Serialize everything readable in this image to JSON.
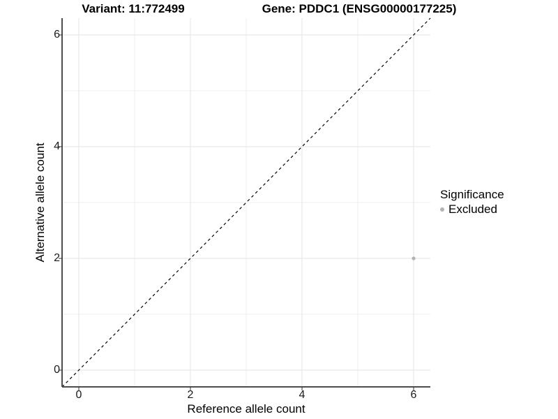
{
  "chart_data": {
    "type": "scatter",
    "titles": {
      "left": "Variant: 11:772499",
      "right": "Gene: PDDC1 (ENSG00000177225)"
    },
    "xlabel": "Reference allele count",
    "ylabel": "Alternative allele count",
    "xlim": [
      -0.3,
      6.3
    ],
    "ylim": [
      -0.3,
      6.3
    ],
    "x_ticks": [
      0,
      2,
      4,
      6
    ],
    "y_ticks": [
      0,
      2,
      4,
      6
    ],
    "x_minor_gridlines": [
      1,
      3,
      5
    ],
    "y_minor_gridlines": [
      1,
      3,
      5
    ],
    "grid": true,
    "identity_line": {
      "style": "dashed",
      "from": [
        -0.3,
        -0.3
      ],
      "to": [
        6.3,
        6.3
      ],
      "color": "#000000"
    },
    "series": [
      {
        "name": "Excluded",
        "color": "#b3b3b3",
        "points": [
          {
            "x": 6,
            "y": 2
          }
        ]
      }
    ],
    "legend": {
      "title": "Significance",
      "position": "right",
      "entries": [
        {
          "label": "Excluded",
          "color": "#b3b3b3"
        }
      ]
    },
    "colors": {
      "background": "#ffffff",
      "axis_line": "#4d4d4d",
      "tick_mark": "#333333",
      "major_grid": "#e3e3e3",
      "minor_grid": "#efefef",
      "tick_text": "#1a1a1a"
    }
  }
}
